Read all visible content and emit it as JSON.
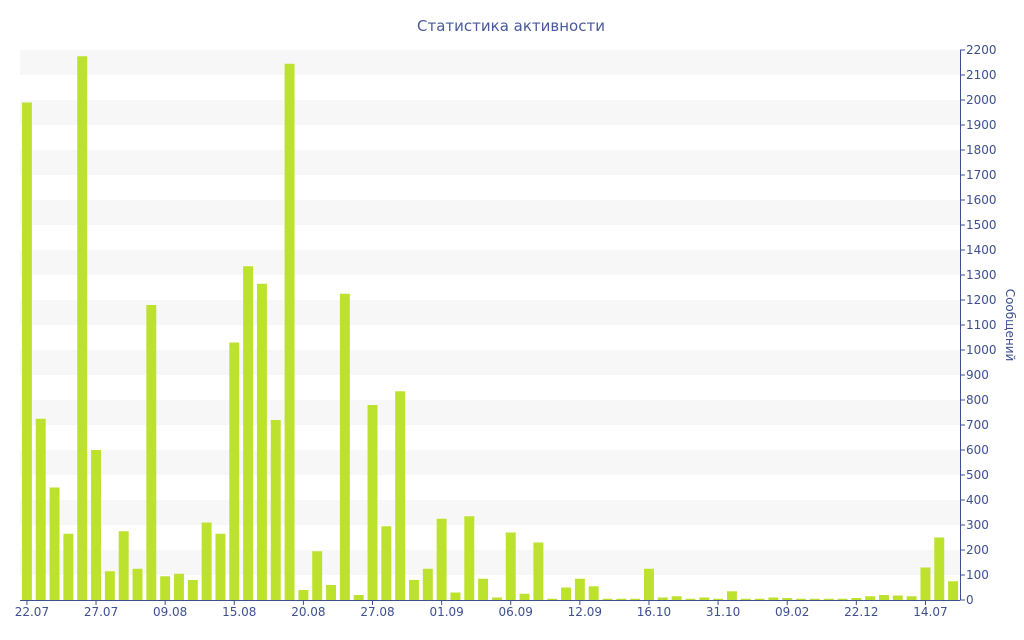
{
  "chart_data": {
    "type": "bar",
    "title": "Статистика активности",
    "xlabel": "",
    "ylabel": "Сообщений",
    "ylim": [
      0,
      2200
    ],
    "ytick_step": 100,
    "grid": "alternating horizontal bands",
    "y_axis_position": "right",
    "bar_color": "#bde22e",
    "band_color": "#f7f7f7",
    "text_color": "#3d4f8f",
    "x_tick_labels": [
      {
        "index": 0,
        "label": "22.07"
      },
      {
        "index": 5,
        "label": "27.07"
      },
      {
        "index": 10,
        "label": "09.08"
      },
      {
        "index": 15,
        "label": "15.08"
      },
      {
        "index": 20,
        "label": "20.08"
      },
      {
        "index": 25,
        "label": "27.08"
      },
      {
        "index": 30,
        "label": "01.09"
      },
      {
        "index": 35,
        "label": "06.09"
      },
      {
        "index": 40,
        "label": "12.09"
      },
      {
        "index": 45,
        "label": "16.10"
      },
      {
        "index": 50,
        "label": "31.10"
      },
      {
        "index": 55,
        "label": "09.02"
      },
      {
        "index": 60,
        "label": "22.12"
      },
      {
        "index": 65,
        "label": "14.07"
      }
    ],
    "values": [
      1990,
      725,
      450,
      265,
      2175,
      600,
      115,
      275,
      125,
      1180,
      95,
      105,
      80,
      310,
      265,
      1030,
      1335,
      1265,
      720,
      2145,
      40,
      195,
      60,
      1225,
      20,
      780,
      295,
      835,
      80,
      125,
      325,
      30,
      335,
      85,
      10,
      270,
      25,
      230,
      5,
      50,
      85,
      55,
      5,
      5,
      5,
      125,
      10,
      15,
      5,
      10,
      5,
      35,
      5,
      5,
      10,
      8,
      5,
      5,
      5,
      5,
      8,
      15,
      20,
      18,
      15,
      130,
      250,
      75
    ]
  }
}
